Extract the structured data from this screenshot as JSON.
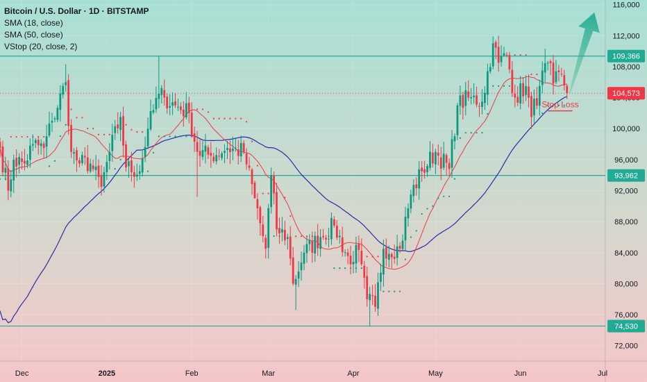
{
  "chart_data": {
    "type": "candlestick",
    "title": "Bitcoin / U.S. Dollar · 1D · BITSTAMP",
    "indicators": [
      "SMA (18, close)",
      "SMA (50, close)",
      "VStop (20, close, 2)"
    ],
    "ylim": [
      70000,
      116600
    ],
    "y_ticks": [
      72000,
      76000,
      80000,
      84000,
      88000,
      92000,
      96000,
      100000,
      104000,
      108000,
      112000,
      116000
    ],
    "y_tick_labels": [
      "72,000",
      "76,000",
      "80,000",
      "84,000",
      "88,000",
      "92,000",
      "96,000",
      "100,000",
      "104,000",
      "108,000",
      "112,000",
      "116,000"
    ],
    "x_start": "2024-11-23",
    "x_end": "2025-07-02",
    "x_ticks": [
      {
        "date": "2024-12-01",
        "label": "Dec",
        "bold": false
      },
      {
        "date": "2025-01-01",
        "label": "2025",
        "bold": true
      },
      {
        "date": "2025-02-01",
        "label": "Feb",
        "bold": false
      },
      {
        "date": "2025-03-01",
        "label": "Mar",
        "bold": false
      },
      {
        "date": "2025-04-01",
        "label": "Apr",
        "bold": false
      },
      {
        "date": "2025-05-01",
        "label": "May",
        "bold": false
      },
      {
        "date": "2025-06-01",
        "label": "Jun",
        "bold": false
      },
      {
        "date": "2025-07-01",
        "label": "Jul",
        "bold": false
      }
    ],
    "horizontal_levels": [
      {
        "value": 109366,
        "label": "109,366",
        "style": "solid",
        "color": "#22ab94"
      },
      {
        "value": 93962,
        "label": "93,962",
        "style": "solid",
        "color": "#22ab94"
      },
      {
        "value": 74530,
        "label": "74,530",
        "style": "solid",
        "color": "#22ab94"
      }
    ],
    "last_price": {
      "value": 104573,
      "label": "104,573",
      "color": "#f23645"
    },
    "stop_loss": {
      "label": "Stop Loss",
      "date_from": "2025-06-11",
      "date_to": "2025-06-20",
      "value": 102300
    },
    "target_arrow": {
      "from_date": "2025-06-19",
      "from_value": 104600,
      "to_date": "2025-06-28",
      "to_value": 115000
    },
    "anchors": [
      [
        "2024-11-23",
        97500
      ],
      [
        "2024-11-26",
        92000
      ],
      [
        "2024-11-28",
        96000
      ],
      [
        "2024-12-02",
        95500
      ],
      [
        "2024-12-05",
        98000
      ],
      [
        "2024-12-09",
        97500
      ],
      [
        "2024-12-12",
        101000
      ],
      [
        "2024-12-17",
        106000
      ],
      [
        "2024-12-19",
        97000
      ],
      [
        "2024-12-22",
        95500
      ],
      [
        "2024-12-26",
        95500
      ],
      [
        "2024-12-30",
        92500
      ],
      [
        "2025-01-02",
        97000
      ],
      [
        "2025-01-06",
        101500
      ],
      [
        "2025-01-08",
        95000
      ],
      [
        "2025-01-13",
        94500
      ],
      [
        "2025-01-16",
        100000
      ],
      [
        "2025-01-20",
        104500
      ],
      [
        "2025-01-22",
        104000
      ],
      [
        "2025-01-26",
        103000
      ],
      [
        "2025-01-31",
        102000
      ],
      [
        "2025-02-03",
        97000
      ],
      [
        "2025-02-08",
        96500
      ],
      [
        "2025-02-14",
        97500
      ],
      [
        "2025-02-20",
        97000
      ],
      [
        "2025-02-24",
        91000
      ],
      [
        "2025-02-28",
        84500
      ],
      [
        "2025-03-02",
        94000
      ],
      [
        "2025-03-04",
        87000
      ],
      [
        "2025-03-08",
        86000
      ],
      [
        "2025-03-10",
        80000
      ],
      [
        "2025-03-14",
        84000
      ],
      [
        "2025-03-20",
        86000
      ],
      [
        "2025-03-25",
        87500
      ],
      [
        "2025-03-31",
        82500
      ],
      [
        "2025-04-02",
        85000
      ],
      [
        "2025-04-06",
        78000
      ],
      [
        "2025-04-09",
        77000
      ],
      [
        "2025-04-12",
        84500
      ],
      [
        "2025-04-18",
        84500
      ],
      [
        "2025-04-22",
        91500
      ],
      [
        "2025-04-26",
        94500
      ],
      [
        "2025-05-01",
        97000
      ],
      [
        "2025-05-06",
        94800
      ],
      [
        "2025-05-09",
        103000
      ],
      [
        "2025-05-13",
        104000
      ],
      [
        "2025-05-18",
        103500
      ],
      [
        "2025-05-22",
        111000
      ],
      [
        "2025-05-24",
        108500
      ],
      [
        "2025-05-27",
        109500
      ],
      [
        "2025-05-30",
        104000
      ],
      [
        "2025-06-03",
        105500
      ],
      [
        "2025-06-05",
        101500
      ],
      [
        "2025-06-08",
        105500
      ],
      [
        "2025-06-11",
        108500
      ],
      [
        "2025-06-13",
        105800
      ],
      [
        "2025-06-16",
        107000
      ],
      [
        "2025-06-18",
        104573
      ]
    ],
    "spikes": [
      {
        "date": "2024-12-17",
        "high": 108300
      },
      {
        "date": "2025-01-20",
        "high": 109366
      },
      {
        "date": "2025-02-03",
        "low": 91200
      },
      {
        "date": "2025-02-24",
        "low": 91500
      },
      {
        "date": "2025-03-02",
        "high": 95000
      },
      {
        "date": "2025-03-11",
        "low": 76600
      },
      {
        "date": "2025-04-07",
        "low": 74530
      },
      {
        "date": "2025-05-22",
        "high": 111900
      },
      {
        "date": "2025-06-10",
        "high": 110300
      }
    ],
    "colors": {
      "up": "#089981",
      "down": "#f23645",
      "sma18": "#f23645",
      "sma50": "#2a2aa8",
      "vstop_up": "#089981",
      "vstop_down": "#f23645",
      "background_top": "#a8e0d5",
      "background_bottom": "#f6c6c9"
    }
  }
}
